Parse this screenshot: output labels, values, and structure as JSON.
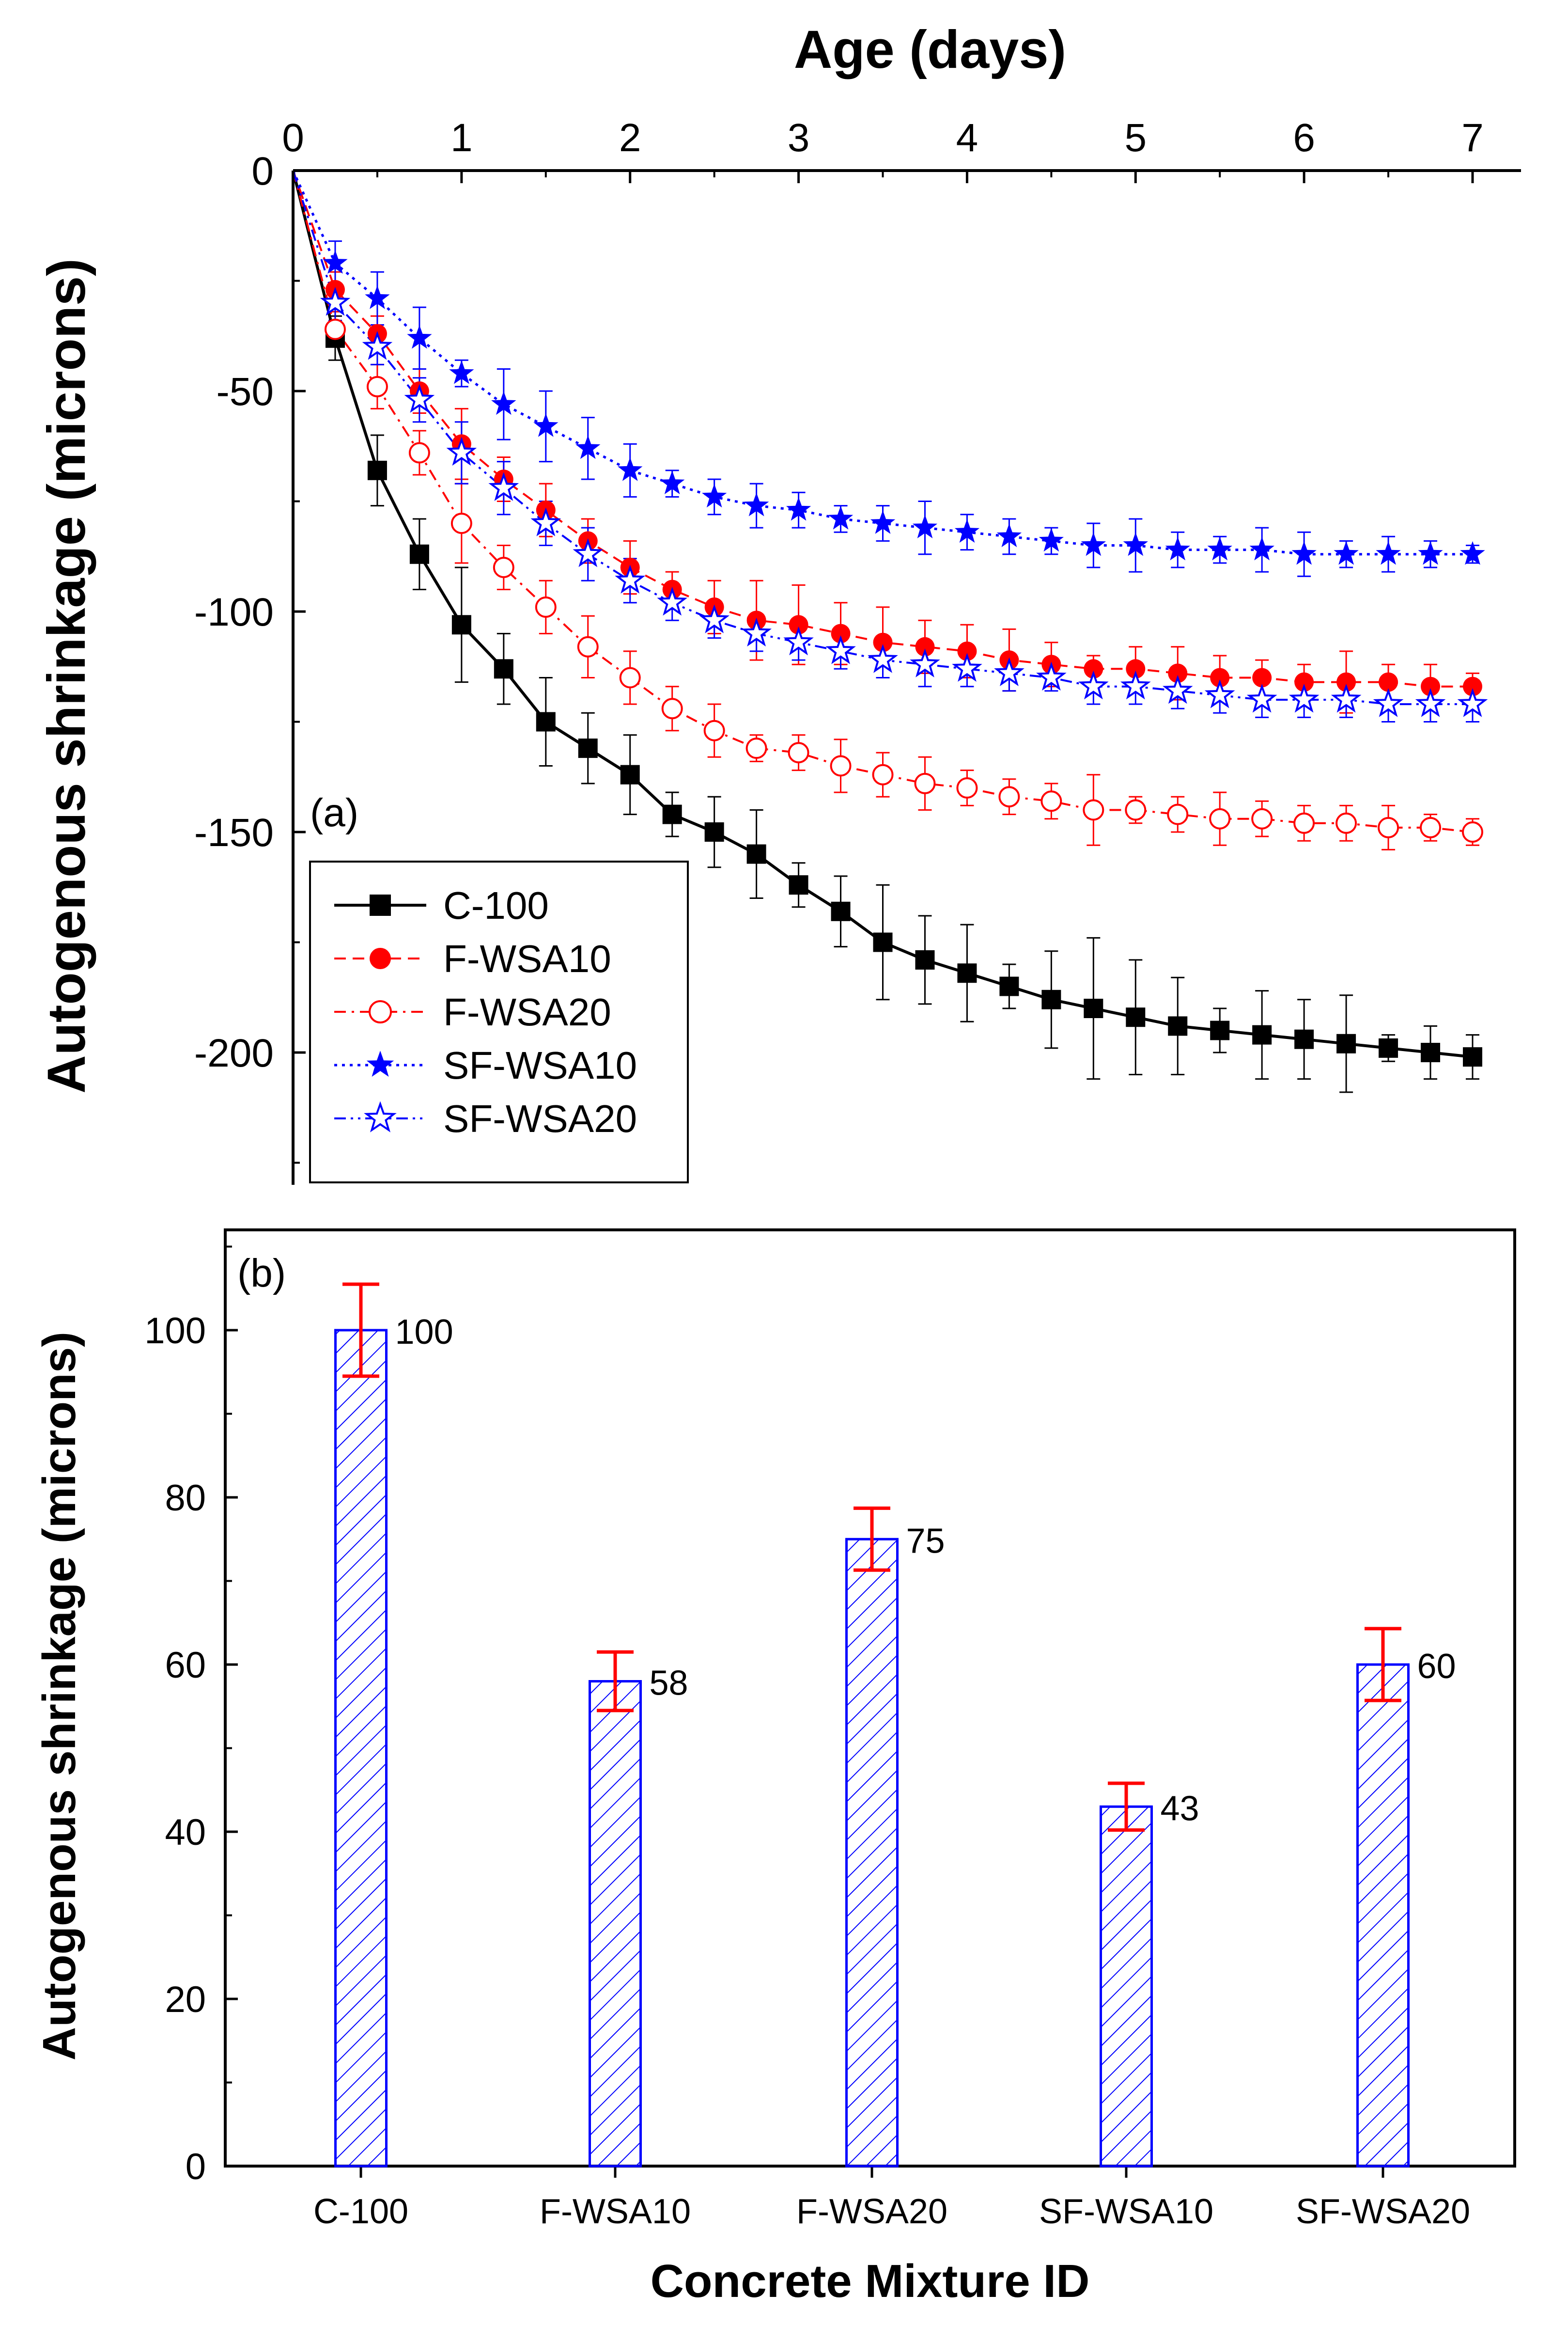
{
  "chart_data": [
    {
      "type": "line",
      "panel_label": "(a)",
      "title": "",
      "xlabel": "Age (days)",
      "ylabel": "Autogenous shrinkage (microns)",
      "xlim": [
        0,
        7
      ],
      "ylim": [
        -230,
        0
      ],
      "x_ticks": [
        0,
        1,
        2,
        3,
        4,
        5,
        6,
        7
      ],
      "y_ticks": [
        0,
        -50,
        -100,
        -150,
        -200
      ],
      "x_tick_labels": [
        "0",
        "1",
        "2",
        "3",
        "4",
        "5",
        "6",
        "7"
      ],
      "y_tick_labels": [
        "0",
        "-50",
        "-100",
        "-150",
        "-200"
      ],
      "x_axis_position": "top",
      "legend_position": "bottom-left",
      "x": [
        0,
        0.25,
        0.5,
        0.75,
        1,
        1.25,
        1.5,
        1.75,
        2,
        2.25,
        2.5,
        2.75,
        3,
        3.25,
        3.5,
        3.75,
        4,
        4.25,
        4.5,
        4.75,
        5,
        5.25,
        5.5,
        5.75,
        6,
        6.25,
        6.5,
        6.75,
        7
      ],
      "series": [
        {
          "name": "C-100",
          "color": "#000000",
          "marker": "square-filled",
          "line_style": "solid",
          "values": [
            0,
            -38,
            -68,
            -87,
            -103,
            -113,
            -125,
            -131,
            -137,
            -146,
            -150,
            -155,
            -162,
            -168,
            -175,
            -179,
            -182,
            -185,
            -188,
            -190,
            -192,
            -194,
            -195,
            -196,
            -197,
            -198,
            -199,
            -200,
            -201
          ],
          "errors": [
            0,
            5,
            8,
            8,
            13,
            8,
            10,
            8,
            9,
            5,
            8,
            10,
            5,
            8,
            13,
            10,
            11,
            5,
            11,
            16,
            13,
            11,
            5,
            10,
            9,
            11,
            3,
            6,
            5
          ]
        },
        {
          "name": "F-WSA10",
          "color": "#ff0000",
          "marker": "circle-filled",
          "line_style": "dash",
          "values": [
            0,
            -27,
            -37,
            -50,
            -62,
            -70,
            -77,
            -84,
            -90,
            -95,
            -99,
            -102,
            -103,
            -105,
            -107,
            -108,
            -109,
            -111,
            -112,
            -113,
            -113,
            -114,
            -115,
            -115,
            -116,
            -116,
            -116,
            -117,
            -117
          ],
          "errors": [
            0,
            4,
            4,
            5,
            8,
            5,
            6,
            5,
            6,
            4,
            6,
            9,
            9,
            7,
            8,
            6,
            6,
            7,
            5,
            3,
            5,
            6,
            5,
            4,
            4,
            7,
            4,
            5,
            3
          ]
        },
        {
          "name": "F-WSA20",
          "color": "#ff0000",
          "marker": "circle-open",
          "line_style": "dash-dot",
          "values": [
            0,
            -36,
            -49,
            -64,
            -80,
            -90,
            -99,
            -108,
            -115,
            -122,
            -127,
            -131,
            -132,
            -135,
            -137,
            -139,
            -140,
            -142,
            -143,
            -145,
            -145,
            -146,
            -147,
            -147,
            -148,
            -148,
            -149,
            -149,
            -150
          ],
          "errors": [
            0,
            4,
            5,
            5,
            9,
            5,
            6,
            7,
            6,
            5,
            6,
            3,
            4,
            6,
            5,
            6,
            4,
            4,
            4,
            8,
            3,
            4,
            6,
            4,
            4,
            4,
            5,
            3,
            3
          ]
        },
        {
          "name": "SF-WSA10",
          "color": "#0000ff",
          "marker": "star-filled",
          "line_style": "dot",
          "values": [
            0,
            -21,
            -29,
            -38,
            -46,
            -53,
            -58,
            -63,
            -68,
            -71,
            -74,
            -76,
            -77,
            -79,
            -80,
            -81,
            -82,
            -83,
            -84,
            -85,
            -85,
            -86,
            -86,
            -86,
            -87,
            -87,
            -87,
            -87,
            -87
          ],
          "errors": [
            0,
            5,
            6,
            7,
            3,
            8,
            8,
            7,
            6,
            3,
            4,
            5,
            4,
            3,
            4,
            6,
            4,
            4,
            3,
            5,
            6,
            4,
            3,
            5,
            5,
            3,
            4,
            3,
            2
          ]
        },
        {
          "name": "SF-WSA20",
          "color": "#0000ff",
          "marker": "star-open",
          "line_style": "dash-dot-dot",
          "values": [
            0,
            -30,
            -40,
            -52,
            -64,
            -72,
            -80,
            -87,
            -93,
            -98,
            -102,
            -105,
            -107,
            -109,
            -111,
            -112,
            -113,
            -114,
            -115,
            -117,
            -117,
            -118,
            -119,
            -120,
            -120,
            -120,
            -121,
            -121,
            -121
          ],
          "errors": [
            0,
            4,
            4,
            5,
            7,
            6,
            5,
            6,
            5,
            4,
            4,
            4,
            4,
            4,
            4,
            5,
            4,
            4,
            3,
            4,
            4,
            4,
            4,
            4,
            4,
            4,
            4,
            4,
            4
          ]
        }
      ]
    },
    {
      "type": "bar",
      "panel_label": "(b)",
      "title": "",
      "xlabel": "Concrete Mixture ID",
      "ylabel": "Autogenous shrinkage (microns)",
      "ylim": [
        0,
        112
      ],
      "y_ticks": [
        0,
        20,
        40,
        60,
        80,
        100
      ],
      "y_tick_labels": [
        "0",
        "20",
        "40",
        "60",
        "80",
        "100"
      ],
      "categories": [
        "C-100",
        "F-WSA10",
        "F-WSA20",
        "SF-WSA10",
        "SF-WSA20"
      ],
      "values": [
        100,
        58,
        75,
        43,
        60
      ],
      "value_labels": [
        "100",
        "58",
        "75",
        "43",
        "60"
      ],
      "errors": [
        5.5,
        3.5,
        3.7,
        2.8,
        4.3
      ],
      "bar_color": "#0000ff",
      "bar_fill": "diagonal-hatch",
      "error_color": "#ff0000"
    }
  ]
}
